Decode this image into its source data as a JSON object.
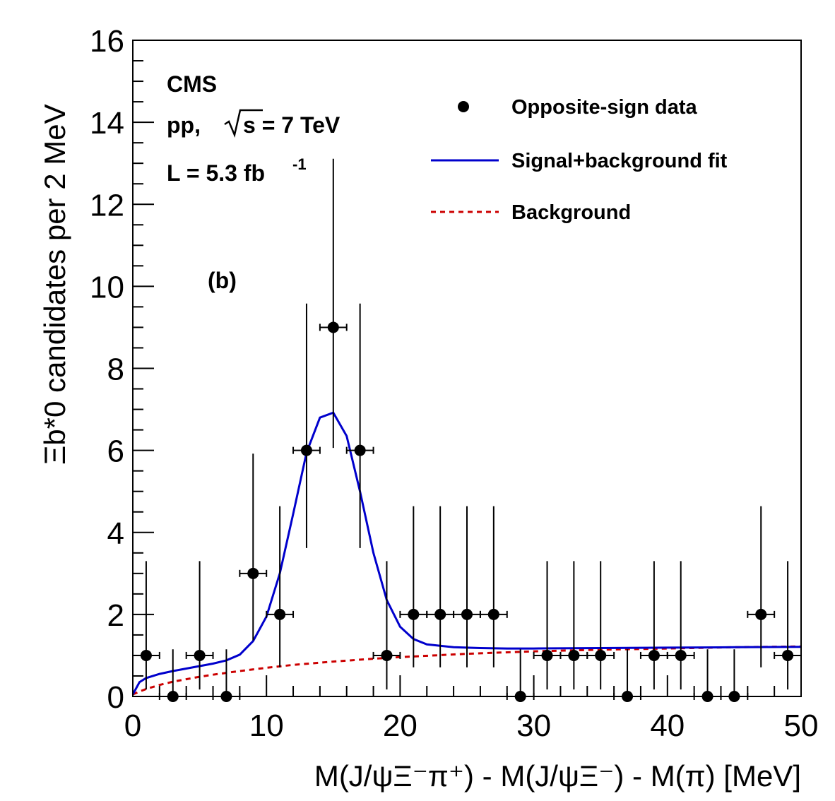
{
  "chart_data": {
    "type": "scatter",
    "xlabel": "M(J/ψΞ⁻π⁺) - M(J/ψΞ⁻) - M(π) [MeV]",
    "ylabel": "Ξb*0 candidates per 2 MeV",
    "xlim": [
      0,
      50
    ],
    "ylim": [
      0,
      16
    ],
    "x_ticks": [
      "0",
      "10",
      "20",
      "30",
      "40",
      "50"
    ],
    "y_ticks": [
      "0",
      "2",
      "4",
      "6",
      "8",
      "10",
      "12",
      "14",
      "16"
    ],
    "grid": false,
    "legend_position": "top-right",
    "bin_half_width": 1,
    "series": [
      {
        "name": "Opposite-sign data",
        "marker": "filled-circle",
        "color": "#000000",
        "x": [
          1,
          3,
          5,
          7,
          9,
          11,
          13,
          15,
          17,
          19,
          21,
          23,
          25,
          27,
          29,
          31,
          33,
          35,
          37,
          39,
          41,
          43,
          45,
          47,
          49
        ],
        "y": [
          1,
          0,
          1,
          0,
          3,
          2,
          6,
          9,
          6,
          1,
          2,
          2,
          2,
          2,
          0,
          1,
          1,
          1,
          0,
          1,
          1,
          0,
          0,
          2,
          1
        ],
        "y_err_low": [
          0.83,
          0,
          0.83,
          0,
          1.63,
          1.29,
          2.38,
          2.94,
          2.38,
          0.83,
          1.29,
          1.29,
          1.29,
          1.29,
          0,
          0.83,
          0.83,
          0.83,
          0,
          0.83,
          0.83,
          0,
          0,
          1.29,
          0.83
        ],
        "y_err_high": [
          2.3,
          1.15,
          2.3,
          1.15,
          2.92,
          2.64,
          3.58,
          4.11,
          3.58,
          2.3,
          2.64,
          2.64,
          2.64,
          2.64,
          1.15,
          2.3,
          2.3,
          2.3,
          1.15,
          2.3,
          2.3,
          1.15,
          1.15,
          2.64,
          2.3
        ]
      },
      {
        "name": "Signal+background fit",
        "line": "solid",
        "color": "#0000cc",
        "x": [
          0,
          0.5,
          1,
          2,
          3,
          4,
          5,
          6,
          7,
          8,
          9,
          10,
          11,
          12,
          13,
          14,
          15,
          16,
          17,
          18,
          19,
          20,
          21,
          22,
          24,
          26,
          28,
          30,
          35,
          40,
          45,
          50
        ],
        "y": [
          0.05,
          0.35,
          0.45,
          0.55,
          0.62,
          0.68,
          0.74,
          0.8,
          0.88,
          1.02,
          1.35,
          1.95,
          3.0,
          4.45,
          5.95,
          6.8,
          6.92,
          6.35,
          5.0,
          3.5,
          2.35,
          1.7,
          1.4,
          1.27,
          1.2,
          1.18,
          1.17,
          1.17,
          1.18,
          1.19,
          1.2,
          1.21
        ]
      },
      {
        "name": "Background",
        "line": "dashed",
        "color": "#cc0000",
        "x": [
          0,
          0.5,
          1,
          2,
          3,
          4,
          5,
          6,
          8,
          10,
          12,
          15,
          18,
          20,
          25,
          30,
          35,
          40,
          45,
          50
        ],
        "y": [
          0.05,
          0.12,
          0.18,
          0.28,
          0.36,
          0.42,
          0.48,
          0.53,
          0.62,
          0.7,
          0.77,
          0.85,
          0.92,
          0.96,
          1.04,
          1.1,
          1.14,
          1.17,
          1.2,
          1.22
        ]
      }
    ],
    "annotations": {
      "experiment": "CMS",
      "energy_prefix": "pp,",
      "energy_value": "s = 7 TeV",
      "lumi": "L = 5.3 fb",
      "lumi_exp": "-1",
      "panel": "(b)"
    }
  }
}
